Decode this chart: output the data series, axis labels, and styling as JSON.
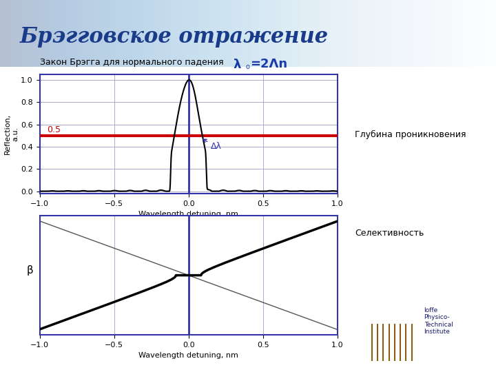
{
  "title": "Брэгговское отражение",
  "subtitle": "Закон Брэгга для нормального падения",
  "lambda_label": "λ",
  "lambda_formula": "=2Λn",
  "bg_top_color": "#5ba3c9",
  "bg_main_color": "#ffffff",
  "plot_bg_color": "#ffffff",
  "plot_border_color": "#3333aa",
  "grid_color": "#aaaacc",
  "title_color": "#1a3a8a",
  "subtitle_color": "#000000",
  "lambda_color": "#1a3aaa",
  "red_line_y": 0.5,
  "red_line_color": "#cc0000",
  "red_line_lw": 3,
  "vertical_line_color": "#3333aa",
  "vertical_line_lw": 2,
  "signal_color": "#000000",
  "signal_lw": 1.5,
  "beta_line_color": "#000000",
  "beta_lw": 2.5,
  "thin_line_color": "#555555",
  "thin_line_lw": 1.0,
  "xlabel": "Wavelength detuning, nm",
  "ylabel_top": "Reflection,\na.u.",
  "ylabel_bottom": "β",
  "xlim": [
    -1,
    1
  ],
  "xticks": [
    -1,
    -0.5,
    0,
    0.5,
    1
  ],
  "delta_lambda_label": "Δλ",
  "delta_lambda_color": "#3333aa",
  "annotation_color": "#000000",
  "text_right_color": "#000000",
  "text_right": [
    "Глубина проникновения",
    "Селективность"
  ]
}
